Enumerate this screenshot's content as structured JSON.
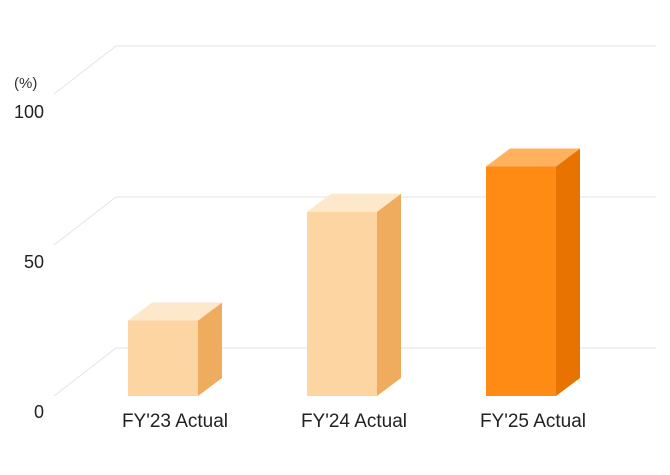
{
  "chart_data": {
    "type": "bar",
    "categories": [
      "FY'23 Actual",
      "FY'24 Actual",
      "FY'25 Actual"
    ],
    "values": [
      25,
      61,
      76
    ],
    "ylabel": "(%)",
    "ylim": [
      0,
      100
    ],
    "yticks": [
      "0",
      "50",
      "100"
    ],
    "grid": true,
    "style": "3d",
    "colors": [
      {
        "front": "#FDD5A3",
        "top": "#FEE8CC",
        "side": "#F0AC5E"
      },
      {
        "front": "#FDD5A3",
        "top": "#FEE8CC",
        "side": "#F0AC5E"
      },
      {
        "front": "#FF8A14",
        "top": "#FFB15E",
        "side": "#E87300"
      }
    ]
  }
}
